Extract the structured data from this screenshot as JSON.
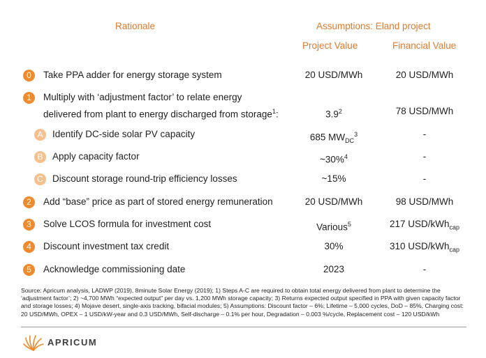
{
  "headers": {
    "rationale": "Rationale",
    "assumptions": "Assumptions: Eland project",
    "project_value": "Project Value",
    "financial_value": "Financial Value"
  },
  "rows": [
    {
      "badge": "0",
      "text": "Take PPA adder for energy storage system",
      "project": "20 USD/MWh",
      "financial": "20 USD/MWh"
    },
    {
      "badge": "1",
      "text_line1": "Multiply with ‘adjustment factor’ to relate energy",
      "text_line2": "delivered from plant to energy discharged from storage",
      "text_sup": "1",
      "text_tail": ":",
      "project": "3.9",
      "project_sup": "2",
      "financial": "78 USD/MWh"
    },
    {
      "badge": "A",
      "text": "Identify DC-side solar PV capacity",
      "project": "685 MW",
      "project_sub": "DC",
      "project_sup": "3",
      "financial": "-"
    },
    {
      "badge": "B",
      "text": "Apply capacity factor",
      "project": "~30%",
      "project_sup": "4",
      "financial": "-"
    },
    {
      "badge": "C",
      "text": "Discount storage round-trip efficiency losses",
      "project": "~15%",
      "financial": "-"
    },
    {
      "badge": "2",
      "text": "Add “base” price as part of stored energy remuneration",
      "project": "20 USD/MWh",
      "financial": "98 USD/MWh"
    },
    {
      "badge": "3",
      "text": "Solve LCOS formula for investment cost",
      "project": "Various",
      "project_sup": "5",
      "financial": "217 USD/kWh",
      "financial_sub": "cap"
    },
    {
      "badge": "4",
      "text": "Discount investment tax credit",
      "project": "30%",
      "financial": "310 USD/kWh",
      "financial_sub": "cap"
    },
    {
      "badge": "5",
      "text": "Acknowledge commissioning date",
      "project": "2023",
      "financial": "-"
    }
  ],
  "source": "Source: Apricum analysis, LADWP (2019), 8minute Solar Energy (2019); 1) Steps A-C are required to obtain total energy delivered from plant to determine the ‘adjustment factor’; 2) ~4,700 MWh “expected output” per day vs. 1,200 MWh storage capacity; 3) Returns expected output specified in PPA with given capacity factor and storage losses; 4) Mojave desert, single-axis tracking, bifacial modules; 5) Assumptions: Discount factor – 6%; Lifetime – 5,000 cycles, DoD – 85%, Charging cost: 20 USD/MWh, OPEX – 1 USD/kW-year and 0.3 USD/MWh, Self-discharge – 0.1% per hour, Degradation – 0.003 %/cycle, Replacement cost – 120 USD/kWh",
  "logo_text": "APRICUM",
  "colors": {
    "accent": "#e07a2e",
    "badge_main": "#f08a2c",
    "badge_sub": "#f5c08e"
  }
}
